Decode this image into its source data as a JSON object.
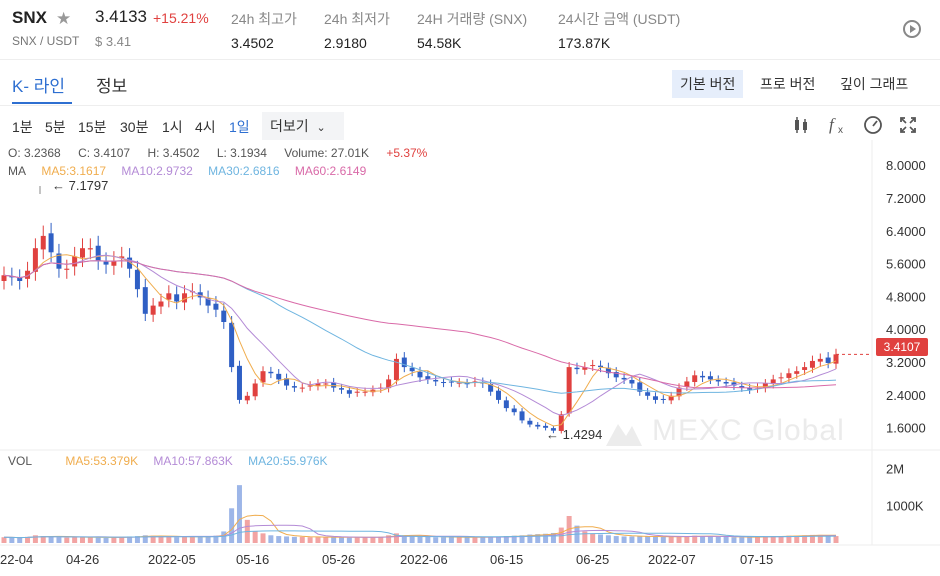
{
  "ticker": {
    "symbol": "SNX",
    "pair": "SNX / USDT",
    "price": "3.4133",
    "change": "+15.21%",
    "usd_price": "$ 3.41",
    "stats": [
      {
        "label": "24h 최고가",
        "value": "3.4502"
      },
      {
        "label": "24h 최저가",
        "value": "2.9180"
      },
      {
        "label": "24H 거래량 (SNX)",
        "value": "54.58K"
      },
      {
        "label": "24시간 금액 (USDT)",
        "value": "173.87K"
      }
    ]
  },
  "tabs": {
    "kline": "K- 라인",
    "info": "정보"
  },
  "views": {
    "basic": "기본 버전",
    "pro": "프로 버전",
    "depth": "깊이 그래프"
  },
  "intervals": [
    "1분",
    "5분",
    "15분",
    "30분",
    "1시",
    "4시",
    "1일"
  ],
  "more_label": "더보기",
  "icons": {
    "candles": "candlestick-icon",
    "fx": "indicator-fx-icon",
    "gauge": "gauge-icon",
    "expand": "fullscreen-icon"
  },
  "ohlc": {
    "open": "O: 3.2368",
    "close": "C: 3.4107",
    "high": "H: 3.4502",
    "low": "L: 3.1934",
    "volume": "Volume: 27.01K",
    "pct": "+5.37%"
  },
  "ma": {
    "label": "MA",
    "ma5": "MA5:3.1617",
    "ma10": "MA10:2.9732",
    "ma30": "MA30:2.6816",
    "ma60": "MA60:2.6149"
  },
  "vol": {
    "label": "VOL",
    "ma5": "MA5:53.379K",
    "ma10": "MA10:57.863K",
    "ma20": "MA20:55.976K"
  },
  "colors": {
    "up": "#e0413f",
    "down": "#2f5fc4",
    "ma5": "#f0ad4e",
    "ma10": "#b48bd6",
    "ma30": "#6fb5e0",
    "ma60": "#d96aa8",
    "accent": "#2e6fd1"
  },
  "current_price_tag": "3.4107",
  "watermark": "MEXC Global",
  "chart_data": {
    "type": "candlestick",
    "y_ticks": [
      "8.0000",
      "7.2000",
      "6.4000",
      "5.6000",
      "4.8000",
      "4.0000",
      "3.2000",
      "2.4000",
      "1.6000"
    ],
    "vol_ticks": [
      "2M",
      "1000K"
    ],
    "x_ticks": [
      "22-04",
      "04-26",
      "2022-05",
      "05-16",
      "05-26",
      "2022-06",
      "06-15",
      "06-25",
      "2022-07",
      "07-15"
    ],
    "annotations": {
      "max": "7.1797",
      "min": "1.4294"
    },
    "closes": [
      5.34,
      5.3,
      5.2,
      5.45,
      6.0,
      6.3,
      5.9,
      5.5,
      5.5,
      5.8,
      6.0,
      6.0,
      5.7,
      5.6,
      5.7,
      5.8,
      5.5,
      5.0,
      4.4,
      4.6,
      4.7,
      4.9,
      4.7,
      4.9,
      4.95,
      4.8,
      4.6,
      4.5,
      4.2,
      3.1,
      2.3,
      2.4,
      2.7,
      3.0,
      2.95,
      2.8,
      2.65,
      2.6,
      2.6,
      2.65,
      2.7,
      2.7,
      2.6,
      2.55,
      2.45,
      2.5,
      2.5,
      2.55,
      2.6,
      2.8,
      3.3,
      3.1,
      3.0,
      2.85,
      2.8,
      2.75,
      2.72,
      2.73,
      2.72,
      2.7,
      2.75,
      2.7,
      2.5,
      2.3,
      2.1,
      2.0,
      1.8,
      1.7,
      1.65,
      1.62,
      1.55,
      1.95,
      3.1,
      3.05,
      3.1,
      3.15,
      3.1,
      2.95,
      2.85,
      2.8,
      2.7,
      2.5,
      2.4,
      2.3,
      2.3,
      2.4,
      2.6,
      2.75,
      2.9,
      2.85,
      2.8,
      2.75,
      2.7,
      2.65,
      2.6,
      2.55,
      2.6,
      2.7,
      2.8,
      2.85,
      2.95,
      3.0,
      3.1,
      3.25,
      3.3,
      3.2,
      3.4107
    ],
    "volumes": [
      150,
      140,
      130,
      160,
      200,
      180,
      170,
      150,
      140,
      160,
      150,
      150,
      140,
      130,
      150,
      160,
      170,
      180,
      200,
      190,
      170,
      160,
      150,
      160,
      170,
      160,
      170,
      190,
      300,
      900,
      1500,
      600,
      300,
      250,
      200,
      180,
      170,
      160,
      160,
      150,
      150,
      150,
      150,
      150,
      140,
      150,
      150,
      150,
      160,
      200,
      250,
      200,
      180,
      170,
      160,
      150,
      150,
      150,
      150,
      150,
      150,
      150,
      160,
      170,
      180,
      190,
      200,
      220,
      230,
      240,
      260,
      400,
      700,
      450,
      300,
      250,
      220,
      200,
      180,
      170,
      170,
      170,
      170,
      160,
      160,
      160,
      170,
      180,
      190,
      180,
      170,
      160,
      160,
      150,
      150,
      150,
      160,
      170,
      180,
      180,
      190,
      190,
      200,
      210,
      210,
      200,
      180
    ]
  }
}
